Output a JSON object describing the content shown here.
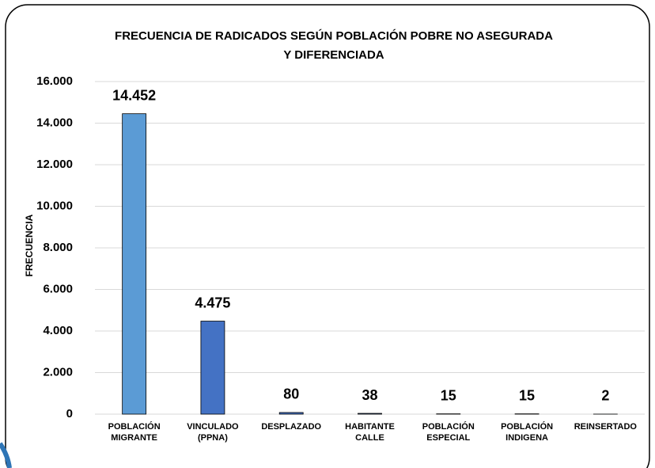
{
  "chart_data": {
    "type": "bar",
    "title": [
      "FRECUENCIA DE RADICADOS SEGÚN POBLACIÓN POBRE NO ASEGURADA",
      "Y DIFERENCIADA"
    ],
    "y_label": "FRECUENCIA",
    "categories": [
      [
        "POBLACIÓN",
        "MIGRANTE"
      ],
      [
        "VINCULADO",
        "(PPNA)"
      ],
      [
        "DESPLAZADO"
      ],
      [
        "HABITANTE",
        "CALLE"
      ],
      [
        "POBLACIÓN",
        "ESPECIAL"
      ],
      [
        "POBLACIÓN",
        "INDIGENA"
      ],
      [
        "REINSERTADO"
      ]
    ],
    "values": [
      14452,
      4475,
      80,
      38,
      15,
      15,
      2
    ],
    "value_labels": [
      "14.452",
      "4.475",
      "80",
      "38",
      "15",
      "15",
      "2"
    ],
    "colors": [
      "#5b9bd5",
      "#4472c4",
      "#4472c4",
      "#4472c4",
      "#4472c4",
      "#4472c4",
      "#4472c4"
    ],
    "ylim": [
      0,
      16000
    ],
    "yticks": [
      0,
      {
        "value": 2000,
        "label": "2.000"
      },
      {
        "value": 4000,
        "label": "4.000"
      },
      {
        "value": 6000,
        "label": "6.000"
      },
      {
        "value": 8000,
        "label": "8.000"
      },
      {
        "value": 10000,
        "label": "10.000"
      },
      {
        "value": 12000,
        "label": "12.000"
      },
      {
        "value": 14000,
        "label": "14.000"
      },
      {
        "value": 16000,
        "label": "16.000"
      }
    ],
    "grid": true
  }
}
